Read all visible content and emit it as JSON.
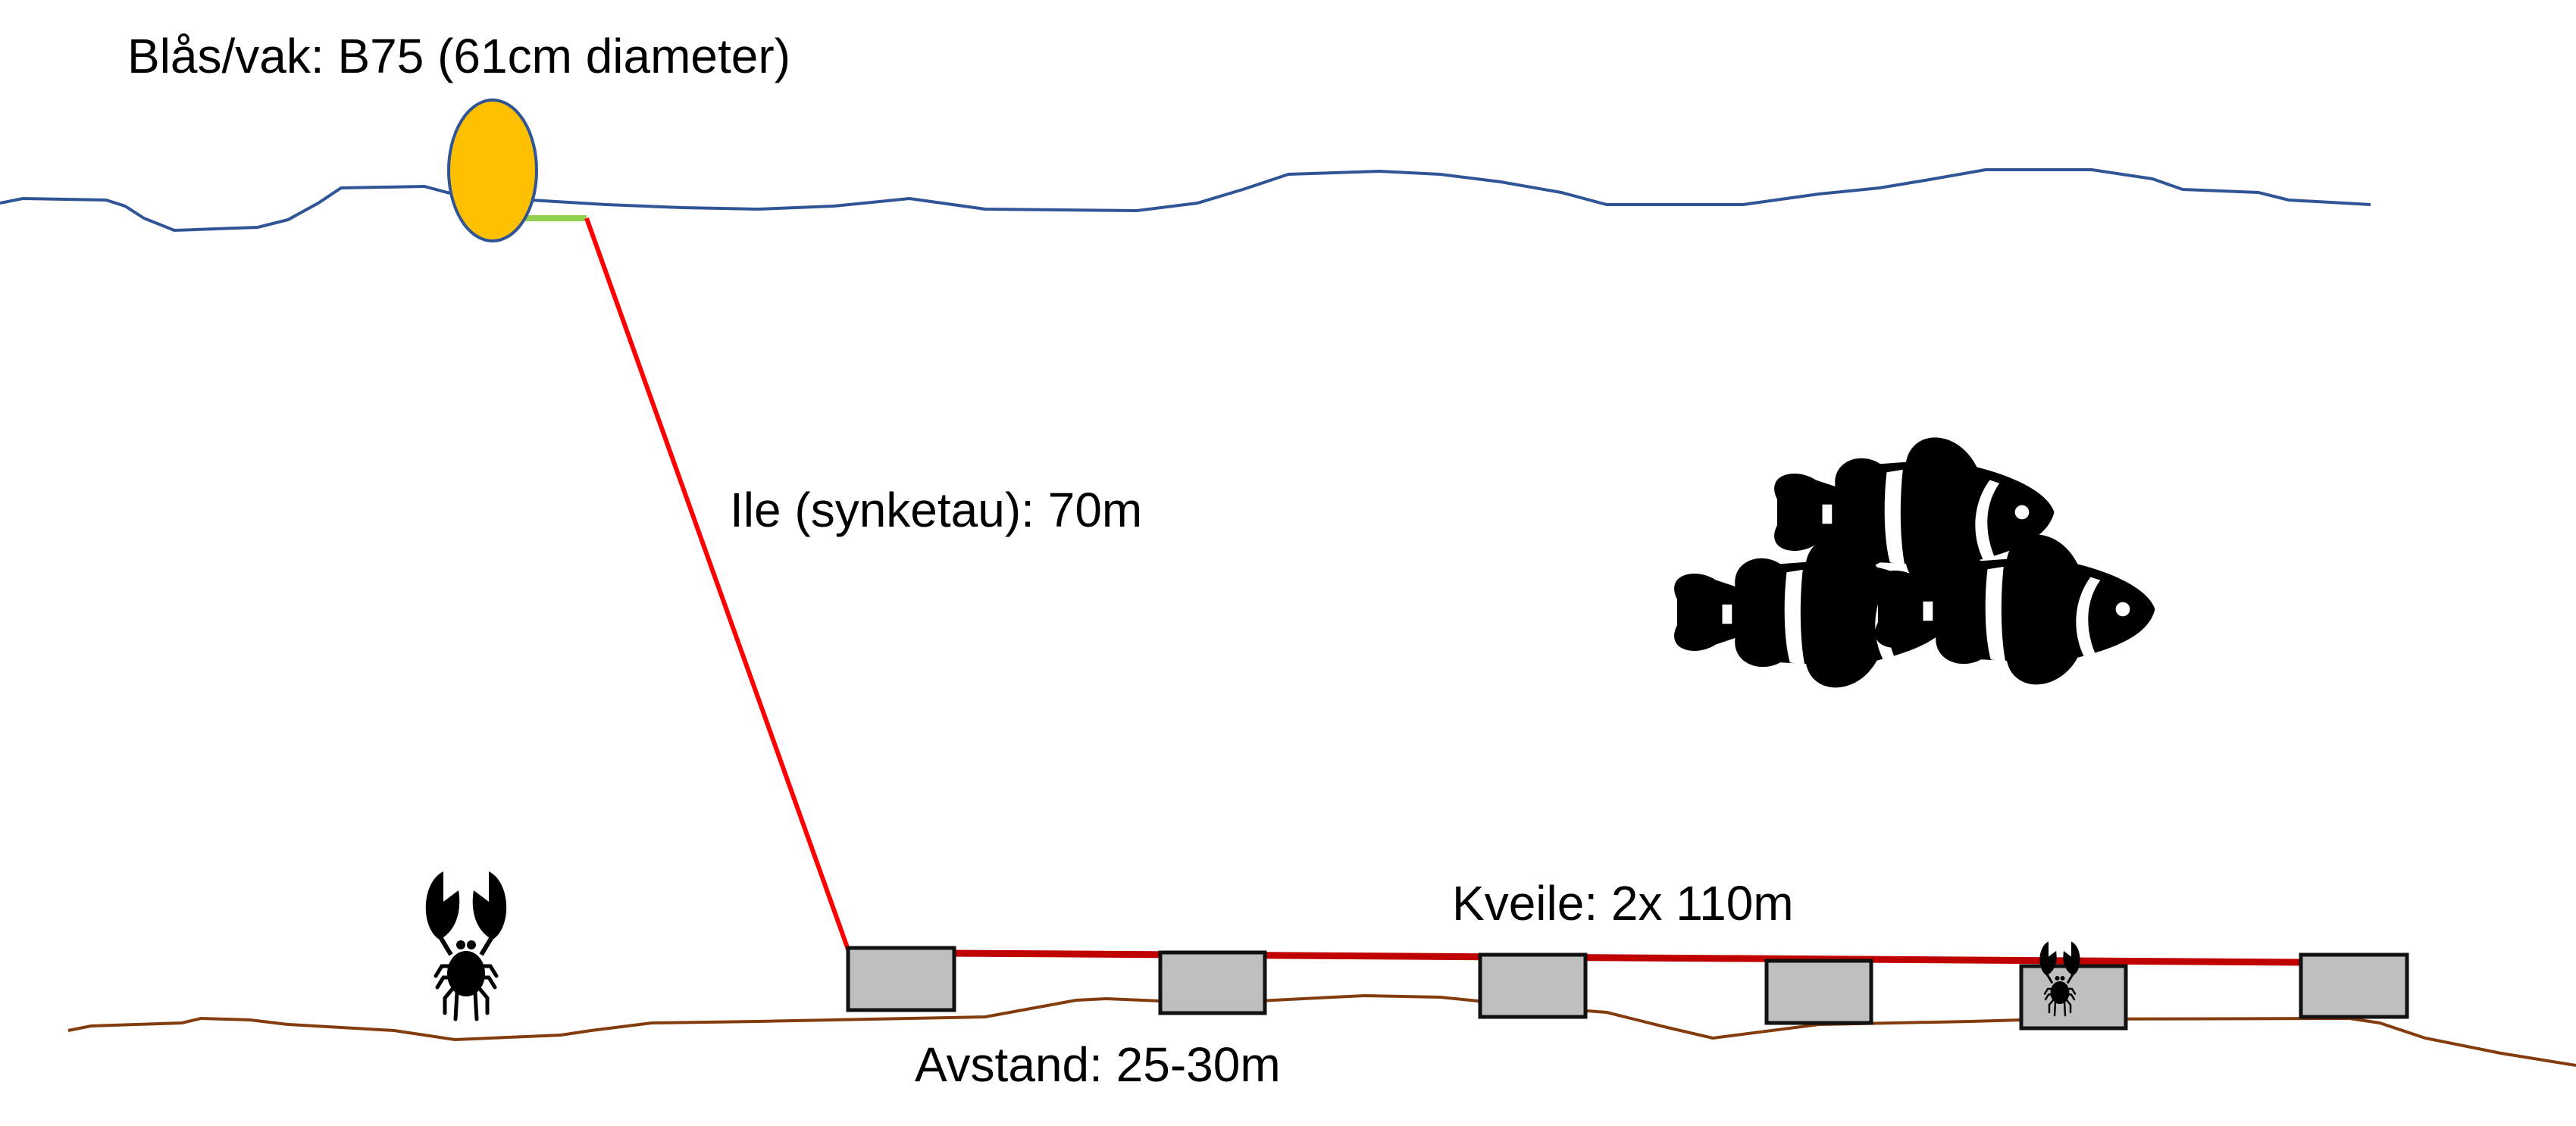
{
  "labels": {
    "buoy": "Blås/vak: B75 (61cm diameter)",
    "sink_rope": "Ile (synketau): 70m",
    "ground_line": "Kveile: 2x 110m",
    "spacing": "Avstand: 25-30m"
  },
  "colors": {
    "surface": "#2F5597",
    "seabed": "#843C0C",
    "buoy_fill": "#FFC000",
    "buoy_connector": "#92D050",
    "sink_rope": "#FF0000",
    "ground_line": "#C00000",
    "trap_fill": "#BFBFBF",
    "trap_stroke": "#111111"
  },
  "traps": 6,
  "icons": [
    "buoy-icon",
    "crab-icon",
    "clownfish-icon"
  ]
}
